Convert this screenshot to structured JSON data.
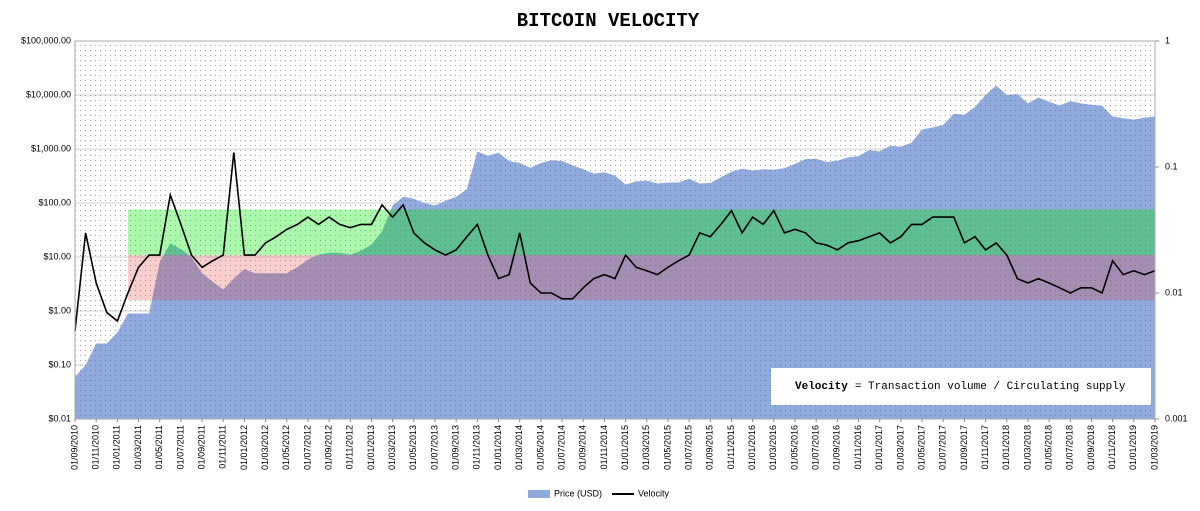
{
  "chart_data": {
    "type": "area-line",
    "title": "BITCOIN VELOCITY",
    "x": [
      "01/09/2010",
      "01/10/2010",
      "01/11/2010",
      "01/12/2010",
      "01/01/2011",
      "01/02/2011",
      "01/03/2011",
      "01/04/2011",
      "01/05/2011",
      "01/06/2011",
      "01/07/2011",
      "01/08/2011",
      "01/09/2011",
      "01/10/2011",
      "01/11/2011",
      "01/12/2011",
      "01/01/2012",
      "01/02/2012",
      "01/03/2012",
      "01/04/2012",
      "01/05/2012",
      "01/06/2012",
      "01/07/2012",
      "01/08/2012",
      "01/09/2012",
      "01/10/2012",
      "01/11/2012",
      "01/12/2012",
      "01/01/2013",
      "01/02/2013",
      "01/03/2013",
      "01/04/2013",
      "01/05/2013",
      "01/06/2013",
      "01/07/2013",
      "01/08/2013",
      "01/09/2013",
      "01/10/2013",
      "01/11/2013",
      "01/12/2013",
      "01/01/2014",
      "01/02/2014",
      "01/03/2014",
      "01/04/2014",
      "01/05/2014",
      "01/06/2014",
      "01/07/2014",
      "01/08/2014",
      "01/09/2014",
      "01/10/2014",
      "01/11/2014",
      "01/12/2014",
      "01/01/2015",
      "01/02/2015",
      "01/03/2015",
      "01/04/2015",
      "01/05/2015",
      "01/06/2015",
      "01/07/2015",
      "01/08/2015",
      "01/09/2015",
      "01/10/2015",
      "01/11/2015",
      "01/12/2015",
      "01/01/2016",
      "01/02/2016",
      "01/03/2016",
      "01/04/2016",
      "01/05/2016",
      "01/06/2016",
      "01/07/2016",
      "01/08/2016",
      "01/09/2016",
      "01/10/2016",
      "01/11/2016",
      "01/12/2016",
      "01/01/2017",
      "01/02/2017",
      "01/03/2017",
      "01/04/2017",
      "01/05/2017",
      "01/06/2017",
      "01/07/2017",
      "01/08/2017",
      "01/09/2017",
      "01/10/2017",
      "01/11/2017",
      "01/12/2017",
      "01/01/2018",
      "01/02/2018",
      "01/03/2018",
      "01/04/2018",
      "01/05/2018",
      "01/06/2018",
      "01/07/2018",
      "01/08/2018",
      "01/09/2018",
      "01/10/2018",
      "01/11/2018",
      "01/12/2018",
      "01/01/2019",
      "01/02/2019",
      "01/03/2019"
    ],
    "xlim": [
      "01/09/2010",
      "01/03/2019"
    ],
    "xticks": [
      "01/09/2010",
      "01/11/2010",
      "01/01/2011",
      "01/03/2011",
      "01/05/2011",
      "01/07/2011",
      "01/09/2011",
      "01/11/2011",
      "01/01/2012",
      "01/03/2012",
      "01/05/2012",
      "01/07/2012",
      "01/09/2012",
      "01/11/2012",
      "01/01/2013",
      "01/03/2013",
      "01/05/2013",
      "01/07/2013",
      "01/09/2013",
      "01/11/2013",
      "01/01/2014",
      "01/03/2014",
      "01/05/2014",
      "01/07/2014",
      "01/09/2014",
      "01/11/2014",
      "01/01/2015",
      "01/03/2015",
      "01/05/2015",
      "01/07/2015",
      "01/09/2015",
      "01/11/2015",
      "01/01/2016",
      "01/03/2016",
      "01/05/2016",
      "01/07/2016",
      "01/09/2016",
      "01/11/2016",
      "01/01/2017",
      "01/03/2017",
      "01/05/2017",
      "01/07/2017",
      "01/09/2017",
      "01/11/2017",
      "01/01/2018",
      "01/03/2018",
      "01/05/2018",
      "01/07/2018",
      "01/09/2018",
      "01/11/2018",
      "01/01/2019",
      "01/03/2019"
    ],
    "series": [
      {
        "name": "Price (USD)",
        "color": "#8faadc",
        "axis": "y",
        "values": [
          0.06,
          0.1,
          0.25,
          0.25,
          0.4,
          0.9,
          0.9,
          0.9,
          8,
          18,
          14,
          10,
          5,
          3.5,
          2.5,
          4,
          6,
          5,
          5,
          5,
          5,
          6.5,
          9,
          11,
          12,
          12,
          11,
          13,
          17,
          30,
          90,
          130,
          120,
          100,
          90,
          110,
          130,
          180,
          900,
          750,
          850,
          600,
          550,
          450,
          550,
          620,
          600,
          500,
          420,
          350,
          370,
          320,
          220,
          250,
          260,
          230,
          240,
          240,
          280,
          230,
          235,
          300,
          380,
          430,
          400,
          420,
          415,
          440,
          530,
          650,
          660,
          575,
          605,
          700,
          740,
          960,
          900,
          1150,
          1100,
          1300,
          2300,
          2500,
          2800,
          4500,
          4300,
          6000,
          10000,
          15000,
          10000,
          10500,
          7000,
          9000,
          7500,
          6400,
          7700,
          7000,
          6600,
          6300,
          4000,
          3700,
          3500,
          3800,
          4000
        ]
      },
      {
        "name": "Velocity",
        "color": "#000000",
        "axis": "y2",
        "values": [
          0.005,
          0.03,
          0.012,
          0.007,
          0.006,
          0.01,
          0.016,
          0.02,
          0.02,
          0.06,
          0.035,
          0.02,
          0.016,
          0.018,
          0.02,
          0.13,
          0.02,
          0.02,
          0.025,
          0.028,
          0.032,
          0.035,
          0.04,
          0.035,
          0.04,
          0.035,
          0.033,
          0.035,
          0.035,
          0.05,
          0.04,
          0.05,
          0.03,
          0.025,
          0.022,
          0.02,
          0.022,
          0.028,
          0.035,
          0.02,
          0.013,
          0.014,
          0.03,
          0.012,
          0.01,
          0.01,
          0.009,
          0.009,
          0.011,
          0.013,
          0.014,
          0.013,
          0.02,
          0.016,
          0.015,
          0.014,
          0.016,
          0.018,
          0.02,
          0.03,
          0.028,
          0.035,
          0.045,
          0.03,
          0.04,
          0.035,
          0.045,
          0.03,
          0.032,
          0.03,
          0.025,
          0.024,
          0.022,
          0.025,
          0.026,
          0.028,
          0.03,
          0.025,
          0.028,
          0.035,
          0.035,
          0.04,
          0.04,
          0.04,
          0.025,
          0.028,
          0.022,
          0.025,
          0.02,
          0.013,
          0.012,
          0.013,
          0.012,
          0.011,
          0.01,
          0.011,
          0.011,
          0.01,
          0.018,
          0.014,
          0.015,
          0.014,
          0.015
        ]
      }
    ],
    "ylim": [
      0.01,
      100000
    ],
    "log_y": true,
    "yticks": [
      {
        "value": 100000,
        "label": "$100,000.00"
      },
      {
        "value": 10000,
        "label": "$10,000.00"
      },
      {
        "value": 1000,
        "label": "$1,000.00"
      },
      {
        "value": 100,
        "label": "$100.00"
      },
      {
        "value": 10,
        "label": "$10.00"
      },
      {
        "value": 1,
        "label": "$1.00"
      },
      {
        "value": 0.1,
        "label": "$0.10"
      },
      {
        "value": 0.01,
        "label": "$0.01"
      }
    ],
    "y2lim": [
      0.001,
      1
    ],
    "log_y2": true,
    "y2ticks": [
      1,
      0.1,
      0.01,
      0.001
    ],
    "grid": true,
    "bands": [
      {
        "from": "01/02/2011",
        "range": [
          0.02,
          0.046
        ],
        "axis": "y2",
        "color": "rgba(0,230,0,0.33)"
      },
      {
        "from": "01/02/2011",
        "range": [
          0.0088,
          0.02
        ],
        "axis": "y2",
        "color": "rgba(230,60,60,0.25)"
      }
    ],
    "annotation": {
      "term": "Velocity",
      "definition": "= Transaction volume / Circulating supply"
    },
    "legend": "bottom"
  }
}
